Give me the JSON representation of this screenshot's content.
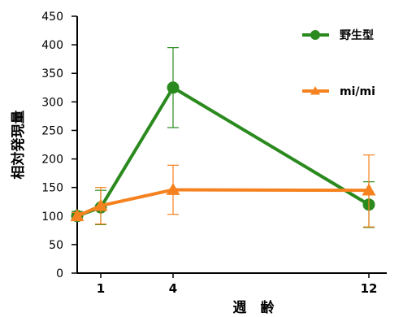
{
  "chart_data": {
    "type": "line",
    "title": "",
    "xlabel": "週　齢",
    "ylabel": "相対発現量",
    "x": [
      0,
      1,
      4,
      12
    ],
    "x_tick_labels": [
      {
        "x": 1,
        "label": "1"
      },
      {
        "x": 4,
        "label": "4"
      },
      {
        "x": 12,
        "label": "12"
      }
    ],
    "xlim": [
      0,
      13
    ],
    "ylim": [
      0,
      450
    ],
    "y_ticks": [
      0,
      50,
      100,
      150,
      200,
      250,
      300,
      350,
      400,
      450
    ],
    "grid": false,
    "legend_position": "top-right",
    "series": [
      {
        "name": "野生型",
        "color": "#2a8a1e",
        "marker": "circle",
        "values": [
          100,
          115,
          325,
          120
        ],
        "error": [
          [
            8,
            30,
            70,
            40
          ],
          [
            8,
            30,
            70,
            40
          ]
        ]
      },
      {
        "name": "mi/mi",
        "color": "#f5821f",
        "marker": "triangle",
        "values": [
          100,
          118,
          146,
          145
        ],
        "error": [
          [
            6,
            32,
            43,
            64
          ],
          [
            6,
            32,
            43,
            62
          ]
        ]
      }
    ]
  }
}
